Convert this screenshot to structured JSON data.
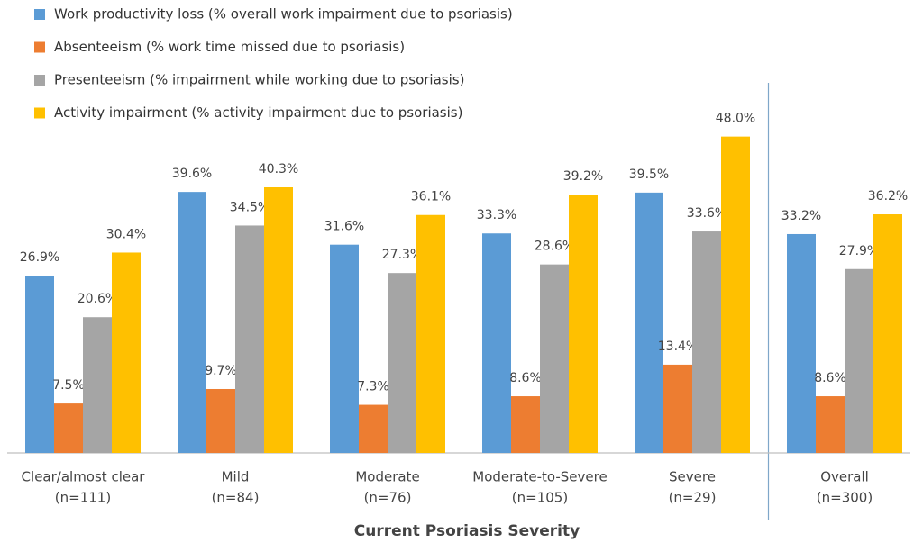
{
  "chart_data": {
    "type": "bar",
    "categories": [
      [
        "Clear/almost clear",
        "(n=111)"
      ],
      [
        "Mild",
        "(n=84)"
      ],
      [
        "Moderate",
        "(n=76)"
      ],
      [
        "Moderate-to-Severe",
        "(n=105)"
      ],
      [
        "Severe",
        "(n=29)"
      ],
      [
        "Overall",
        "(n=300)"
      ]
    ],
    "series": [
      {
        "name": "Work productivity  loss  (% overall work impairment due to psoriasis)",
        "color": "#5b9bd5",
        "values": [
          26.9,
          39.6,
          31.6,
          33.3,
          39.5,
          33.2
        ],
        "value_labels": [
          "26.9%",
          "39.6%",
          "31.6%",
          "33.3%",
          "39.5%",
          "33.2%"
        ]
      },
      {
        "name": "Absenteeism (% work time missed due to psoriasis)",
        "color": "#ed7d31",
        "values": [
          7.5,
          9.7,
          7.3,
          8.6,
          13.4,
          8.6
        ],
        "value_labels": [
          "7.5%",
          "9.7%",
          "7.3%",
          "8.6%",
          "13.4%",
          "8.6%"
        ]
      },
      {
        "name": "Presenteeism (% impairment while working due to psoriasis)",
        "color": "#a5a5a5",
        "values": [
          20.6,
          34.5,
          27.3,
          28.6,
          33.6,
          27.9
        ],
        "value_labels": [
          "20.6%",
          "34.5%",
          "27.3%",
          "28.6%",
          "33.6%",
          "27.9%"
        ]
      },
      {
        "name": "Activity impairment  (% activity impairment due to psoriasis)",
        "color": "#ffc000",
        "values": [
          30.4,
          40.3,
          36.1,
          39.2,
          48.0,
          36.2
        ],
        "value_labels": [
          "30.4%",
          "40.3%",
          "36.1%",
          "39.2%",
          "48.0%",
          "36.2%"
        ]
      }
    ],
    "x_label": "Current Psoriasis Severity",
    "ylim": [
      0,
      50
    ],
    "legend": "top-left"
  }
}
